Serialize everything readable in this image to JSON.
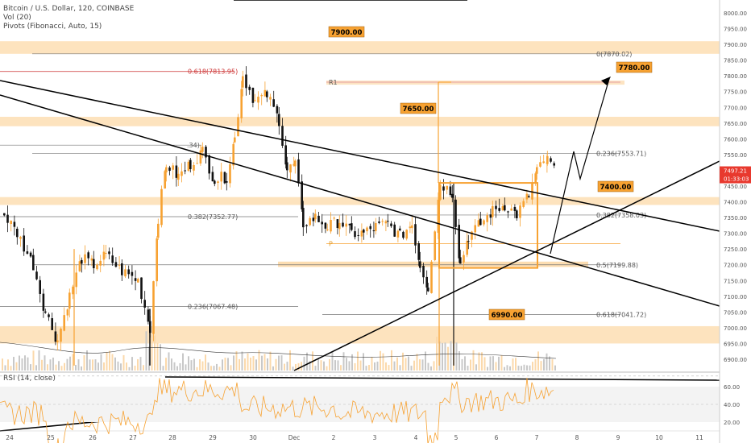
{
  "header": {
    "symbol_line": "Bitcoin / U.S. Dollar, 120, COINBASE",
    "vol_line": "Vol (20)",
    "pivots_line": "Pivots (Fibonacci, Auto, 15)"
  },
  "rsi_label": "RSI (14, close)",
  "price_axis": {
    "ticks": [
      "8000.00",
      "7950.00",
      "7900.00",
      "7850.00",
      "7800.00",
      "7750.00",
      "7700.00",
      "7650.00",
      "7600.00",
      "7550.00",
      "7500.00",
      "7450.00",
      "7400.00",
      "7350.00",
      "7300.00",
      "7250.00",
      "7200.00",
      "7150.00",
      "7100.00",
      "7050.00",
      "7000.00",
      "6950.00",
      "6900.00"
    ],
    "last_price": "7497.21",
    "countdown": "01:33:03"
  },
  "rsi_axis": {
    "ticks": [
      "60.00",
      "40.00",
      "20.00"
    ]
  },
  "time_axis": {
    "labels": [
      "24",
      "25",
      "26",
      "27",
      "28",
      "29",
      "30",
      "Dec",
      "2",
      "3",
      "4",
      "5",
      "6",
      "7",
      "8",
      "9",
      "10",
      "11"
    ]
  },
  "chart_data": {
    "type": "candlestick",
    "symbol": "Bitcoin / U.S. Dollar",
    "timeframe": "120",
    "exchange": "COINBASE",
    "y_range": [
      6880,
      8000
    ],
    "rsi_range": [
      15,
      70
    ],
    "callouts": [
      "7900.00",
      "7780.00",
      "7650.00",
      "7400.00",
      "6990.00"
    ],
    "fib_levels": [
      {
        "label": "0(7870.02)",
        "value": 7870.02
      },
      {
        "label": "0.618(7813.95)",
        "value": 7813.95
      },
      {
        "label": "R1",
        "value": 7780
      },
      {
        "label": "0.236(7553.71)",
        "value": 7553.71
      },
      {
        "label": ".34)",
        "value": 7580
      },
      {
        "label": "0.382(7352.77)",
        "value": 7352.77
      },
      {
        "label": "0.382(7358.03)",
        "value": 7358.03
      },
      {
        "label": "P",
        "value": 7267
      },
      {
        "label": "0.5(7199.88)",
        "value": 7199.88
      },
      {
        "label": "0.236(7067.48)",
        "value": 7067.48
      },
      {
        "label": "0.618(7041.72)",
        "value": 7041.72
      }
    ],
    "colors": {
      "bull": "#f7a232",
      "bear": "#111111",
      "zone": "#fcd9a8",
      "callout": "#f7a232"
    }
  }
}
